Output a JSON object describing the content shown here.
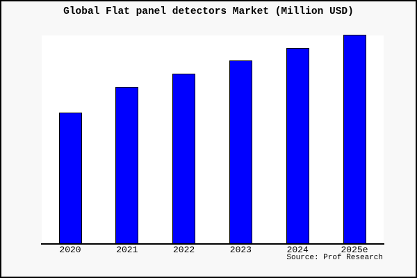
{
  "chart_data": {
    "type": "bar",
    "title": "Global Flat panel detectors Market (Million USD)",
    "categories": [
      "2020",
      "2021",
      "2022",
      "2023",
      "2024",
      "2025e"
    ],
    "values": [
      189,
      226,
      245,
      264,
      282,
      301
    ],
    "values_note": "no y-axis scale, gridlines or data labels shown; values are relative bar heights in pixels",
    "values_normalized_pct_of_max": [
      62.8,
      75.1,
      81.4,
      87.7,
      93.7,
      100
    ],
    "xlabel": "",
    "ylabel": "",
    "legend": false,
    "grid": false,
    "source_note": "Source: Prof Research",
    "colors": {
      "bar_fill": "#0000ff",
      "bar_border": "#000000",
      "figure_background": "#f8f8f8",
      "plot_background": "#ffffff",
      "axis_line": "#000000",
      "outer_border": "#000000",
      "text": "#000000"
    }
  }
}
